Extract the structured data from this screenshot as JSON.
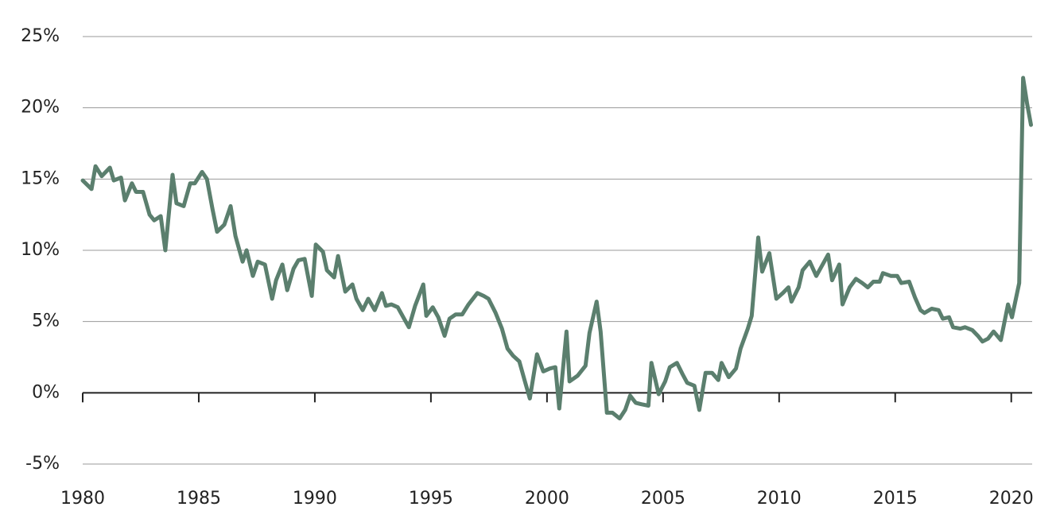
{
  "chart_data": {
    "type": "line",
    "series": [
      {
        "color": "#5b7f6e",
        "x": [
          1980.0,
          1980.38,
          1980.55,
          1980.82,
          1981.17,
          1981.34,
          1981.65,
          1981.82,
          1982.12,
          1982.3,
          1982.6,
          1982.88,
          1983.08,
          1983.36,
          1983.56,
          1983.87,
          1984.04,
          1984.35,
          1984.63,
          1984.83,
          1985.14,
          1985.35,
          1985.59,
          1985.79,
          1986.1,
          1986.37,
          1986.58,
          1986.89,
          1987.06,
          1987.33,
          1987.54,
          1987.85,
          1988.16,
          1988.33,
          1988.6,
          1988.81,
          1989.08,
          1989.29,
          1989.56,
          1989.87,
          1990.04,
          1990.35,
          1990.52,
          1990.83,
          1991.0,
          1991.31,
          1991.62,
          1991.79,
          1992.06,
          1992.3,
          1992.58,
          1992.89,
          1993.06,
          1993.3,
          1993.57,
          1993.81,
          1994.05,
          1994.32,
          1994.67,
          1994.8,
          1995.08,
          1995.32,
          1995.59,
          1995.8,
          1996.07,
          1996.35,
          1996.62,
          1997.0,
          1997.27,
          1997.48,
          1997.79,
          1998.06,
          1998.3,
          1998.54,
          1998.81,
          1999.05,
          1999.26,
          1999.57,
          1999.84,
          2000.12,
          2000.36,
          2000.53,
          2000.84,
          2000.97,
          2001.32,
          2001.66,
          2001.83,
          2002.14,
          2002.31,
          2002.58,
          2002.82,
          2003.13,
          2003.37,
          2003.58,
          2003.82,
          2004.06,
          2004.37,
          2004.5,
          2004.81,
          2005.09,
          2005.29,
          2005.6,
          2005.84,
          2006.04,
          2006.35,
          2006.56,
          2006.83,
          2007.11,
          2007.38,
          2007.52,
          2007.83,
          2008.14,
          2008.34,
          2008.65,
          2008.82,
          2009.1,
          2009.27,
          2009.58,
          2009.88,
          2010.16,
          2010.4,
          2010.53,
          2010.84,
          2011.01,
          2011.32,
          2011.6,
          2012.11,
          2012.28,
          2012.59,
          2012.73,
          2013.04,
          2013.31,
          2013.58,
          2013.82,
          2014.06,
          2014.33,
          2014.47,
          2014.82,
          2015.09,
          2015.26,
          2015.6,
          2015.85,
          2016.09,
          2016.26,
          2016.57,
          2016.87,
          2017.05,
          2017.32,
          2017.49,
          2017.8,
          2018.01,
          2018.32,
          2018.56,
          2018.76,
          2019.0,
          2019.24,
          2019.55,
          2019.86,
          2020.03,
          2020.34,
          2020.51,
          2020.68,
          2020.85
        ],
        "values": [
          14.9,
          14.3,
          15.9,
          15.2,
          15.8,
          14.9,
          15.1,
          13.5,
          14.7,
          14.1,
          14.1,
          12.5,
          12.1,
          12.4,
          10.0,
          15.3,
          13.3,
          13.1,
          14.7,
          14.7,
          15.5,
          15.0,
          12.9,
          11.3,
          11.8,
          13.1,
          11.0,
          9.2,
          10.0,
          8.2,
          9.2,
          9.0,
          6.6,
          7.9,
          9.0,
          7.2,
          8.7,
          9.3,
          9.4,
          6.8,
          10.4,
          9.9,
          8.6,
          8.1,
          9.6,
          7.1,
          7.6,
          6.6,
          5.8,
          6.6,
          5.8,
          7.0,
          6.1,
          6.2,
          6.0,
          5.3,
          4.6,
          6.1,
          7.6,
          5.4,
          6.0,
          5.3,
          4.0,
          5.2,
          5.5,
          5.5,
          6.2,
          7.0,
          6.8,
          6.6,
          5.6,
          4.5,
          3.1,
          2.6,
          2.2,
          0.8,
          -0.4,
          2.7,
          1.5,
          1.7,
          1.8,
          -1.1,
          4.3,
          0.8,
          1.2,
          1.9,
          4.2,
          6.4,
          4.3,
          -1.4,
          -1.4,
          -1.8,
          -1.2,
          -0.2,
          -0.7,
          -0.8,
          -0.9,
          2.1,
          -0.1,
          0.8,
          1.8,
          2.1,
          1.3,
          0.7,
          0.5,
          -1.2,
          1.4,
          1.4,
          0.9,
          2.1,
          1.1,
          1.7,
          3.1,
          4.5,
          5.4,
          10.9,
          8.5,
          9.8,
          6.6,
          7.0,
          7.4,
          6.4,
          7.4,
          8.6,
          9.2,
          8.2,
          9.7,
          7.9,
          9.0,
          6.2,
          7.4,
          8.0,
          7.7,
          7.4,
          7.8,
          7.8,
          8.4,
          8.2,
          8.2,
          7.7,
          7.8,
          6.7,
          5.8,
          5.6,
          5.9,
          5.8,
          5.2,
          5.3,
          4.6,
          4.5,
          4.6,
          4.4,
          4.0,
          3.6,
          3.8,
          4.3,
          3.7,
          6.2,
          5.3,
          7.7,
          22.1,
          20.3,
          18.8
        ]
      }
    ],
    "xlim": [
      1980,
      2020.9
    ],
    "xticks": [
      1980,
      1985,
      1990,
      1995,
      2000,
      2005,
      2010,
      2015,
      2020
    ],
    "ylim": [
      -5,
      25
    ],
    "yticks": [
      {
        "value": -5,
        "label": "-5%"
      },
      {
        "value": 0,
        "label": "0%"
      },
      {
        "value": 5,
        "label": "5%"
      },
      {
        "value": 10,
        "label": "10%"
      },
      {
        "value": 15,
        "label": "15%"
      },
      {
        "value": 20,
        "label": "20%"
      },
      {
        "value": 25,
        "label": "25%"
      }
    ],
    "grid": true
  }
}
